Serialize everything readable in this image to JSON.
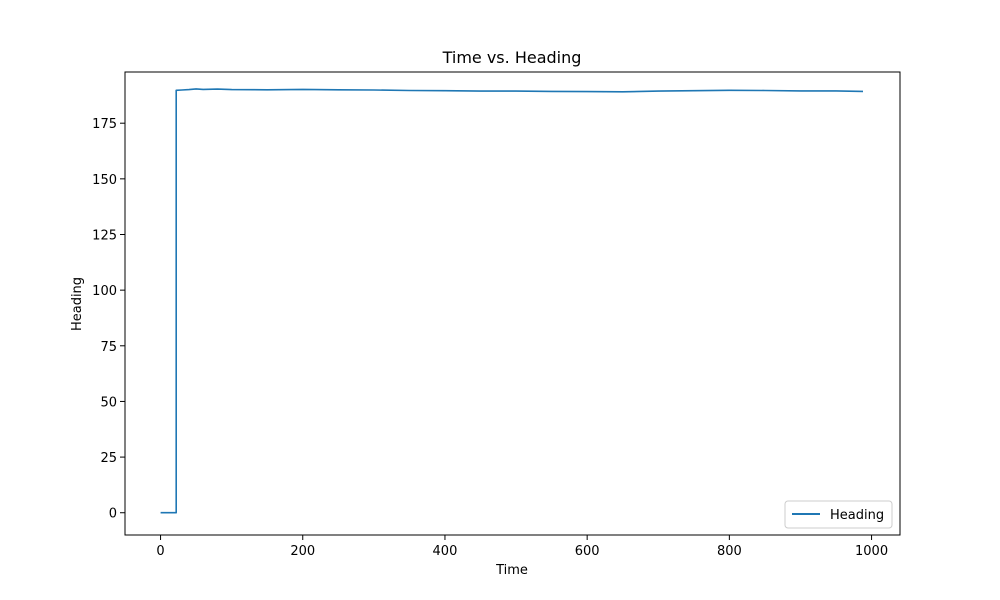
{
  "chart_data": {
    "type": "line",
    "title": "Time vs. Heading",
    "xlabel": "Time",
    "ylabel": "Heading",
    "xlim": [
      -50,
      1040
    ],
    "ylim": [
      -10,
      198
    ],
    "xticks": [
      0,
      200,
      400,
      600,
      800,
      1000
    ],
    "yticks": [
      0,
      25,
      50,
      75,
      100,
      125,
      150,
      175
    ],
    "grid": false,
    "legend_position": "lower-right",
    "series": [
      {
        "name": "Heading",
        "color": "#1f77b4",
        "x": [
          0,
          22,
          22,
          30,
          40,
          50,
          60,
          80,
          100,
          150,
          200,
          250,
          300,
          350,
          400,
          450,
          500,
          550,
          600,
          650,
          700,
          750,
          800,
          850,
          900,
          950,
          988
        ],
        "y": [
          0,
          0,
          189.8,
          189.9,
          190.1,
          190.4,
          190.2,
          190.3,
          190.1,
          190.0,
          190.2,
          190.0,
          189.9,
          189.7,
          189.6,
          189.4,
          189.4,
          189.3,
          189.2,
          189.1,
          189.4,
          189.6,
          189.8,
          189.7,
          189.5,
          189.5,
          189.3
        ]
      }
    ]
  }
}
